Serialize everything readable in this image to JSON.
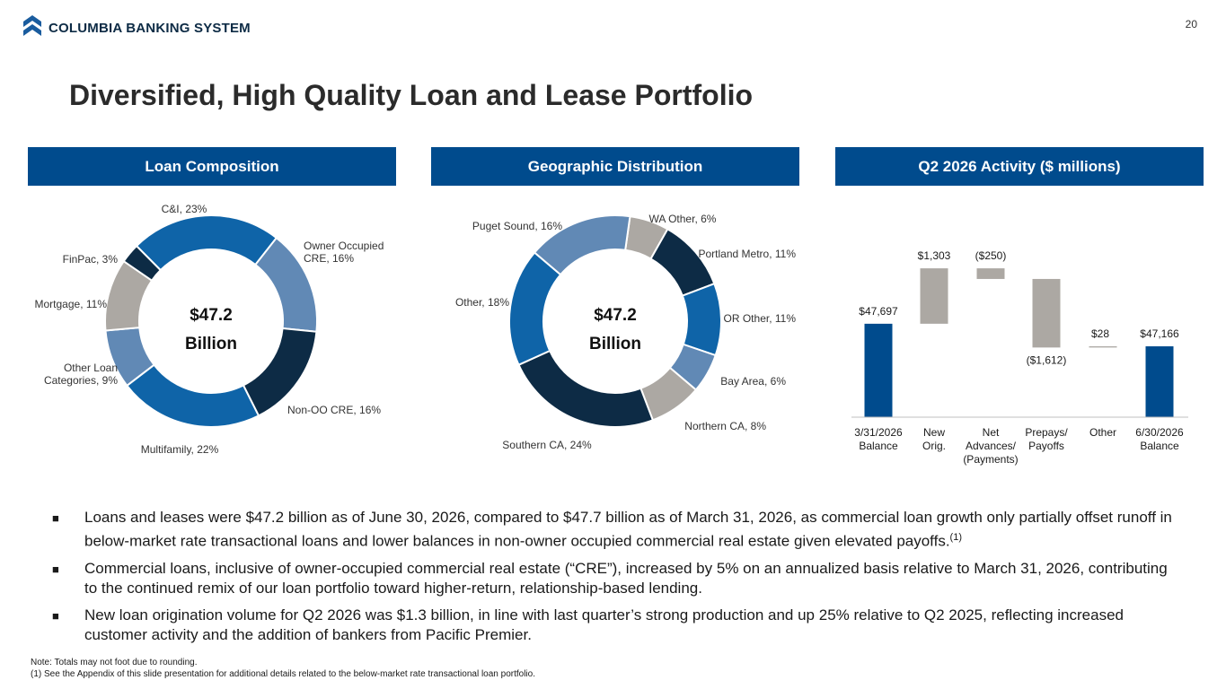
{
  "header": {
    "company": "COLUMBIA BANKING SYSTEM",
    "page_number": "20",
    "title": "Diversified, High Quality Loan and Lease Portfolio"
  },
  "colors": {
    "navy": "#004b8d",
    "dark": "#0d2b45",
    "mid_blue": "#0f64a8",
    "light_blue": "#6189b5",
    "gray": "#aca8a3"
  },
  "panels": [
    "Loan Composition",
    "Geographic Distribution",
    "Q2 2026 Activity ($ millions)"
  ],
  "chart_data": [
    {
      "type": "pie",
      "title": "Loan Composition",
      "center_label": [
        "$47.2",
        "Billion"
      ],
      "labels": [
        "C&I, 23%",
        "Owner Occupied CRE, 16%",
        "Non-OO CRE, 16%",
        "Multifamily, 22%",
        "Other Loan Categories, 9%",
        "Mortgage, 11%",
        "FinPac, 3%"
      ],
      "values": [
        23,
        16,
        16,
        22,
        9,
        11,
        3
      ],
      "colors": [
        "#0f64a8",
        "#6189b5",
        "#0d2b45",
        "#0f64a8",
        "#6189b5",
        "#aca8a3",
        "#0d2b45"
      ]
    },
    {
      "type": "pie",
      "title": "Geographic Distribution",
      "center_label": [
        "$47.2",
        "Billion"
      ],
      "labels": [
        "WA Other, 6%",
        "Portland Metro, 11%",
        "OR Other, 11%",
        "Bay Area, 6%",
        "Northern CA, 8%",
        "Southern CA, 24%",
        "Other, 18%",
        "Puget Sound, 16%"
      ],
      "values": [
        6,
        11,
        11,
        6,
        8,
        24,
        18,
        16
      ],
      "colors": [
        "#aca8a3",
        "#0d2b45",
        "#0f64a8",
        "#6189b5",
        "#aca8a3",
        "#0d2b45",
        "#0f64a8",
        "#6189b5"
      ]
    },
    {
      "type": "bar",
      "subtype": "waterfall",
      "title": "Q2 2026 Activity ($ millions)",
      "categories": [
        "3/31/2026 Balance",
        "New Orig.",
        "Net Advances/ (Payments)",
        "Prepays/ Payoffs",
        "Other",
        "6/30/2026 Balance"
      ],
      "values": [
        47697,
        1303,
        -250,
        -1612,
        28,
        47166
      ],
      "value_labels": [
        "$47,697",
        "$1,303",
        "($250)",
        "($1,612)",
        "$28",
        "$47,166"
      ],
      "kinds": [
        "total",
        "delta",
        "delta",
        "delta",
        "delta",
        "total"
      ]
    }
  ],
  "bullets": [
    "Loans and leases were $47.2 billion as of June 30, 2026, compared to $47.7 billion as of March 31, 2026, as commercial loan growth only partially offset runoff in below-market rate transactional loans and lower balances in non-owner occupied commercial real estate given elevated payoffs.",
    "Commercial loans, inclusive of owner-occupied commercial real estate (“CRE”), increased by 5% on an annualized basis relative to March 31, 2026, contributing to the continued remix of our loan portfolio toward higher-return, relationship-based lending.",
    "New loan origination volume for Q2 2026 was $1.3 billion, in line with last quarter’s strong production and up 25% relative to Q2 2025, reflecting increased customer activity and the addition of bankers from Pacific Premier."
  ],
  "bullet_marker": "■",
  "bullet_1_footnote": "(1)",
  "footnotes": [
    "Note: Totals may not foot due to rounding.",
    "(1)  See the Appendix of this slide presentation for additional details related to the below-market rate transactional loan portfolio."
  ]
}
